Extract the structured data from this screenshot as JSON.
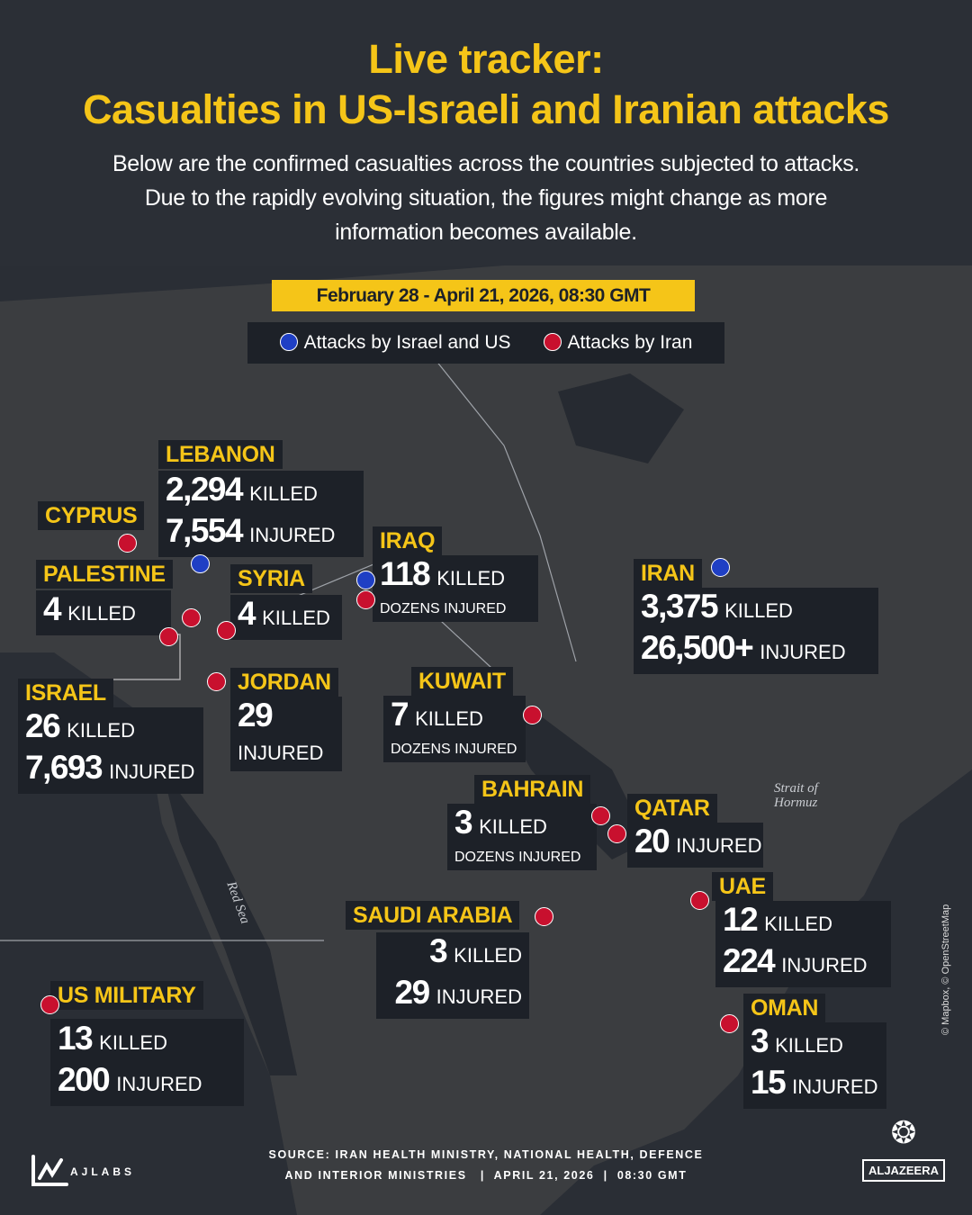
{
  "header": {
    "title_line1": "Live tracker:",
    "title_line2": "Casualties in US-Israeli and Iranian attacks",
    "subtitle": [
      "Below are the confirmed casualties across the countries subjected to attacks.",
      "Due to the rapidly evolving situation, the figures might change as more",
      "information becomes available."
    ],
    "date_range": "February 28 - April 21, 2026, 08:30 GMT"
  },
  "legend": [
    {
      "label": "Attacks by Israel and US",
      "color": "#1f3fc4"
    },
    {
      "label": "Attacks by Iran",
      "color": "#c8102e"
    }
  ],
  "colors": {
    "accent": "#f5c518",
    "iran_attacks": "#c8102e",
    "israel_us_attacks": "#1f3fc4",
    "background": "#2b2f36",
    "panel": "#1d2128"
  },
  "countries": [
    {
      "id": "lebanon",
      "name": "LEBANON",
      "lines": [
        {
          "num": "2,294",
          "unit": "KILLED"
        },
        {
          "num": "7,554",
          "unit": "INJURED"
        }
      ],
      "markers": [
        "blue"
      ]
    },
    {
      "id": "cyprus",
      "name": "CYPRUS",
      "lines": [],
      "markers": [
        "red"
      ]
    },
    {
      "id": "palestine",
      "name": "PALESTINE",
      "lines": [
        {
          "num": "4",
          "unit": "KILLED"
        }
      ],
      "markers": [
        "red",
        "red"
      ]
    },
    {
      "id": "syria",
      "name": "SYRIA",
      "lines": [
        {
          "num": "4",
          "unit": "KILLED"
        }
      ],
      "markers": [
        "red"
      ]
    },
    {
      "id": "iraq",
      "name": "IRAQ",
      "lines": [
        {
          "num": "118",
          "unit": "KILLED"
        },
        {
          "num": "",
          "unit": "DOZENS INJURED"
        }
      ],
      "markers": [
        "blue",
        "red"
      ]
    },
    {
      "id": "iran",
      "name": "IRAN",
      "lines": [
        {
          "num": "3,375",
          "unit": "KILLED"
        },
        {
          "num": "26,500+",
          "unit": "INJURED"
        }
      ],
      "markers": [
        "blue"
      ]
    },
    {
      "id": "israel",
      "name": "ISRAEL",
      "lines": [
        {
          "num": "26",
          "unit": "KILLED"
        },
        {
          "num": "7,693",
          "unit": "INJURED"
        }
      ],
      "markers": []
    },
    {
      "id": "jordan",
      "name": "JORDAN",
      "lines": [
        {
          "num": "29",
          "unit": ""
        },
        {
          "num": "",
          "unit": "INJURED"
        }
      ],
      "markers": [
        "red"
      ]
    },
    {
      "id": "kuwait",
      "name": "KUWAIT",
      "lines": [
        {
          "num": "7",
          "unit": "KILLED"
        },
        {
          "num": "",
          "unit": "DOZENS INJURED"
        }
      ],
      "markers": [
        "red"
      ]
    },
    {
      "id": "bahrain",
      "name": "BAHRAIN",
      "lines": [
        {
          "num": "3",
          "unit": "KILLED"
        },
        {
          "num": "",
          "unit": "DOZENS INJURED"
        }
      ],
      "markers": [
        "red"
      ]
    },
    {
      "id": "qatar",
      "name": "QATAR",
      "lines": [
        {
          "num": "20",
          "unit": "INJURED"
        }
      ],
      "markers": [
        "red"
      ]
    },
    {
      "id": "saudi",
      "name": "SAUDI ARABIA",
      "lines": [
        {
          "num": "3",
          "unit": "KILLED"
        },
        {
          "num": "29",
          "unit": "INJURED"
        }
      ],
      "markers": [
        "red"
      ]
    },
    {
      "id": "uae",
      "name": "UAE",
      "lines": [
        {
          "num": "12",
          "unit": "KILLED"
        },
        {
          "num": "224",
          "unit": "INJURED"
        }
      ],
      "markers": [
        "red"
      ]
    },
    {
      "id": "oman",
      "name": "OMAN",
      "lines": [
        {
          "num": "3",
          "unit": "KILLED"
        },
        {
          "num": "15",
          "unit": "INJURED"
        }
      ],
      "markers": [
        "red"
      ]
    },
    {
      "id": "usmil",
      "name": "US MILITARY",
      "lines": [
        {
          "num": "13",
          "unit": "KILLED"
        },
        {
          "num": "200",
          "unit": "INJURED"
        }
      ],
      "markers": [
        "red"
      ]
    }
  ],
  "map_labels": {
    "strait": "Strait of Hormuz",
    "red_sea": "Red Sea",
    "attribution": "© Mapbox, © OpenStreetMap"
  },
  "footer": {
    "source_line1": "SOURCE:  IRAN HEALTH MINISTRY, NATIONAL HEALTH, DEFENCE",
    "source_line2": "AND INTERIOR MINISTRIES   |  APRIL 21, 2026  |  08:30 GMT",
    "ajlabs_logo": "AJLABS",
    "aljazeera_logo": "ALJAZEERA"
  }
}
